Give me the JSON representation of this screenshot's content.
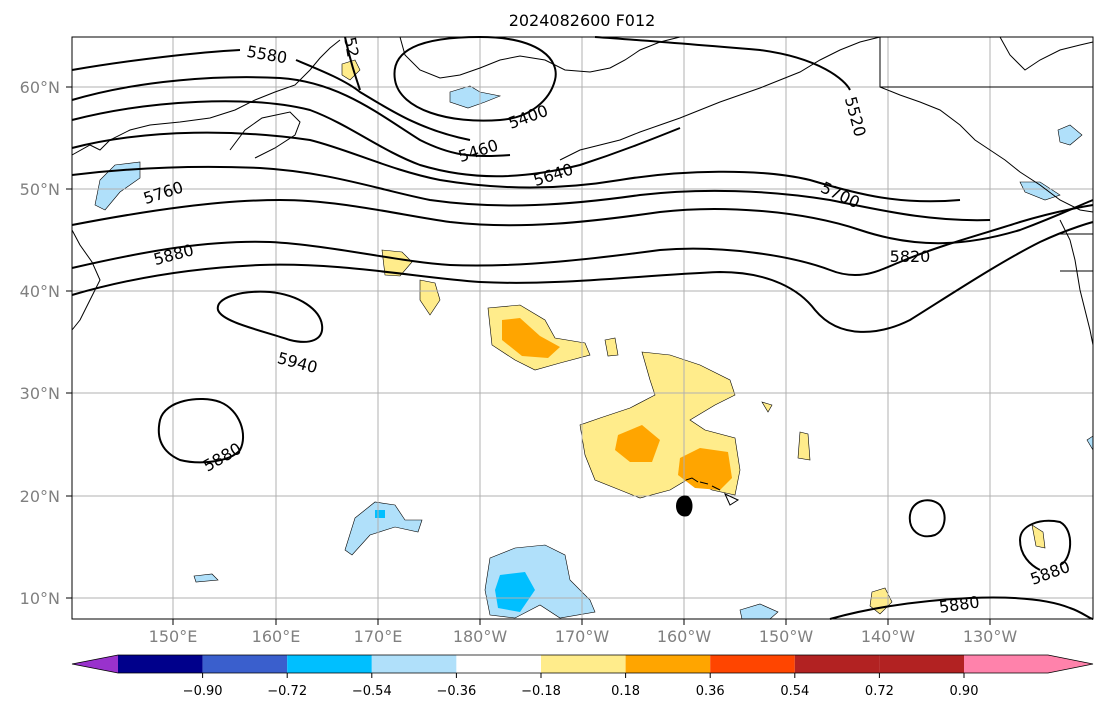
{
  "title": "2024082600 F012",
  "map": {
    "lat_ticks": [
      "60°N",
      "50°N",
      "40°N",
      "30°N",
      "20°N",
      "10°N"
    ],
    "lon_ticks": [
      "150°E",
      "160°E",
      "170°E",
      "180°W",
      "170°W",
      "160°W",
      "150°W",
      "140°W",
      "130°W"
    ],
    "contour_labels": [
      "5580",
      "52",
      "5400",
      "5460",
      "5640",
      "5520",
      "5760",
      "5700",
      "5880",
      "5820",
      "5940",
      "5880",
      "5880",
      "5880"
    ]
  },
  "colorbar": {
    "colors": [
      "#9932cc",
      "#00008b",
      "#3a5fcd",
      "#00bfff",
      "#b0e0fa",
      "#ffffff",
      "#ffec8b",
      "#ffa500",
      "#ff4500",
      "#b22222",
      "#ff82ab"
    ],
    "labels": [
      "−0.90",
      "−0.72",
      "−0.54",
      "−0.36",
      "−0.18",
      "0.18",
      "0.36",
      "0.54",
      "0.72",
      "0.90"
    ]
  }
}
